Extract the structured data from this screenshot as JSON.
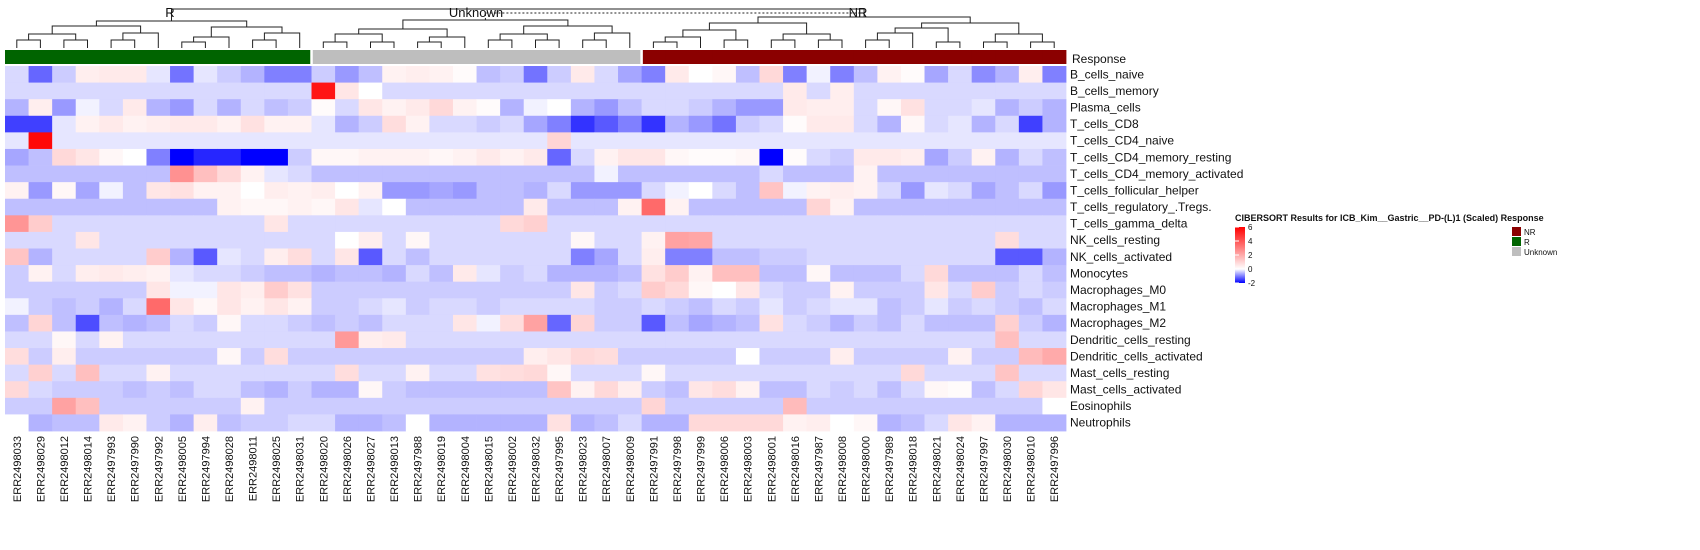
{
  "chart_data": {
    "type": "heatmap",
    "title": "",
    "legend_title": "CIBERSORT Results for ICB_Kim__Gastric__PD-(L)1 (Scaled) Response",
    "colorbar_ticks": [
      "6",
      "4",
      "2",
      "0",
      "-2"
    ],
    "color_scale": {
      "min": -2,
      "mid": 0,
      "max": 6,
      "low": "#0000ff",
      "mid_color": "#ffffff",
      "high": "#ff0000"
    },
    "annotation_label": "Response",
    "group_labels": [
      "R",
      "Unknown",
      "NR"
    ],
    "groups": [
      {
        "name": "NR",
        "color": "#8b0000"
      },
      {
        "name": "R",
        "color": "#006400"
      },
      {
        "name": "Unknown",
        "color": "#bebebe"
      }
    ],
    "samples": [
      "ERR2498033",
      "ERR2498029",
      "ERR2498012",
      "ERR2498014",
      "ERR2497993",
      "ERR2497990",
      "ERR2497992",
      "ERR2498005",
      "ERR2497994",
      "ERR2498028",
      "ERR2498011",
      "ERR2498025",
      "ERR2498031",
      "ERR2498020",
      "ERR2498026",
      "ERR2498027",
      "ERR2498013",
      "ERR2497988",
      "ERR2498019",
      "ERR2498004",
      "ERR2498015",
      "ERR2498002",
      "ERR2498032",
      "ERR2497995",
      "ERR2498023",
      "ERR2498007",
      "ERR2498009",
      "ERR2497991",
      "ERR2497998",
      "ERR2497999",
      "ERR2498006",
      "ERR2498003",
      "ERR2498001",
      "ERR2498016",
      "ERR2497987",
      "ERR2498008",
      "ERR2498000",
      "ERR2497989",
      "ERR2498018",
      "ERR2498021",
      "ERR2498024",
      "ERR2497997",
      "ERR2498030",
      "ERR2498010",
      "ERR2497996"
    ],
    "sample_groups": [
      "R",
      "R",
      "R",
      "R",
      "R",
      "R",
      "R",
      "R",
      "R",
      "R",
      "R",
      "R",
      "R",
      "Unknown",
      "Unknown",
      "Unknown",
      "Unknown",
      "Unknown",
      "Unknown",
      "Unknown",
      "Unknown",
      "Unknown",
      "Unknown",
      "Unknown",
      "Unknown",
      "Unknown",
      "Unknown",
      "NR",
      "NR",
      "NR",
      "NR",
      "NR",
      "NR",
      "NR",
      "NR",
      "NR",
      "NR",
      "NR",
      "NR",
      "NR",
      "NR",
      "NR",
      "NR",
      "NR",
      "NR"
    ],
    "rows": [
      "B_cells_naive",
      "B_cells_memory",
      "Plasma_cells",
      "T_cells_CD8",
      "T_cells_CD4_naive",
      "T_cells_CD4_memory_resting",
      "T_cells_CD4_memory_activated",
      "T_cells_follicular_helper",
      "T_cells_regulatory_.Tregs.",
      "T_cells_gamma_delta",
      "NK_cells_resting",
      "NK_cells_activated",
      "Monocytes",
      "Macrophages_M0",
      "Macrophages_M1",
      "Macrophages_M2",
      "Dendritic_cells_resting",
      "Dendritic_cells_activated",
      "Mast_cells_resting",
      "Mast_cells_activated",
      "Eosinophils",
      "Neutrophils"
    ],
    "values": [
      [
        -0.3,
        -1.2,
        -0.4,
        0.4,
        0.5,
        0.5,
        -0.2,
        -1.1,
        -0.2,
        -0.4,
        -0.6,
        -1.0,
        -1.0,
        -0.4,
        -0.8,
        -0.5,
        0.3,
        0.4,
        0.3,
        0.1,
        -0.5,
        -0.4,
        -1.1,
        -0.4,
        0.5,
        -0.3,
        -0.7,
        -1.0,
        0.5,
        0.0,
        0.2,
        -0.5,
        0.9,
        -1.0,
        -0.1,
        -1.0,
        -0.5,
        0.3,
        0.1,
        -0.7,
        -0.3,
        -0.9,
        -0.6,
        0.4,
        -1.0
      ],
      [
        -0.3,
        -0.3,
        -0.3,
        -0.3,
        -0.3,
        -0.3,
        -0.3,
        -0.3,
        -0.3,
        -0.3,
        -0.3,
        -0.3,
        -0.3,
        5.5,
        0.6,
        0.0,
        -0.3,
        -0.3,
        -0.3,
        -0.3,
        -0.3,
        -0.3,
        -0.3,
        -0.3,
        -0.3,
        -0.3,
        -0.3,
        -0.3,
        -0.3,
        -0.3,
        -0.3,
        -0.3,
        -0.3,
        0.5,
        -0.3,
        0.4,
        -0.3,
        -0.3,
        -0.3,
        -0.3,
        -0.3,
        -0.3,
        -0.3,
        -0.3,
        -0.3
      ],
      [
        -0.6,
        0.4,
        -0.8,
        -0.1,
        -0.3,
        0.5,
        -0.6,
        -0.8,
        -0.3,
        -0.6,
        -0.3,
        -0.5,
        -0.4,
        0.1,
        -0.3,
        0.6,
        0.3,
        0.5,
        0.9,
        0.3,
        0.1,
        -0.6,
        -0.1,
        0.0,
        -0.6,
        -0.8,
        -0.5,
        -0.3,
        -0.3,
        -0.4,
        -0.6,
        -0.8,
        -0.8,
        0.5,
        0.4,
        0.4,
        -0.3,
        0.2,
        0.7,
        -0.3,
        -0.3,
        -0.2,
        -0.6,
        -0.4,
        -0.6
      ],
      [
        -1.5,
        -1.5,
        -0.2,
        0.3,
        0.5,
        0.3,
        0.4,
        0.5,
        0.5,
        0.3,
        0.7,
        0.3,
        0.3,
        -0.2,
        -0.6,
        -0.4,
        0.8,
        0.3,
        -0.3,
        -0.3,
        -0.4,
        -0.3,
        -0.7,
        -1.0,
        -1.6,
        -1.3,
        -1.0,
        -1.6,
        -0.6,
        -0.8,
        -1.1,
        -0.4,
        -0.3,
        0.1,
        0.5,
        0.5,
        -0.3,
        -0.6,
        0.2,
        -0.3,
        -0.2,
        -0.6,
        -0.3,
        -1.5,
        -0.6
      ],
      [
        -0.2,
        5.8,
        -0.2,
        -0.2,
        -0.2,
        -0.2,
        -0.2,
        -0.2,
        -0.2,
        -0.2,
        -0.2,
        -0.2,
        -0.2,
        -0.2,
        -0.2,
        -0.2,
        -0.2,
        -0.2,
        -0.2,
        -0.2,
        -0.2,
        -0.2,
        -0.2,
        1.0,
        -0.2,
        -0.2,
        -0.2,
        -0.2,
        -0.2,
        -0.2,
        -0.2,
        -0.2,
        -0.2,
        -0.2,
        -0.2,
        -0.2,
        -0.2,
        -0.2,
        -0.2,
        -0.2,
        -0.2,
        -0.2,
        -0.2,
        -0.2,
        -0.2
      ],
      [
        -0.7,
        -0.5,
        0.9,
        0.6,
        0.2,
        0.0,
        -1.0,
        -2.0,
        -1.7,
        -1.7,
        -2.0,
        -2.0,
        -0.4,
        0.2,
        0.2,
        0.3,
        0.3,
        0.3,
        0.2,
        0.3,
        0.5,
        0.3,
        0.5,
        -1.2,
        -0.3,
        0.3,
        0.6,
        0.6,
        0.2,
        0.1,
        0.1,
        0.2,
        -2.0,
        0.1,
        -0.3,
        -0.4,
        0.5,
        0.5,
        0.4,
        -0.7,
        -0.4,
        0.3,
        -0.6,
        -0.3,
        -0.5
      ],
      [
        -0.5,
        -0.5,
        -0.5,
        -0.5,
        -0.5,
        -0.5,
        -0.5,
        2.6,
        1.5,
        0.9,
        0.3,
        -0.2,
        -0.3,
        -0.5,
        -0.5,
        -0.5,
        -0.5,
        -0.5,
        -0.5,
        -0.5,
        -0.5,
        -0.5,
        -0.5,
        -0.5,
        -0.5,
        -0.1,
        -0.5,
        -0.5,
        -0.5,
        -0.5,
        -0.5,
        -0.5,
        -0.3,
        -0.5,
        -0.5,
        -0.5,
        0.3,
        -0.5,
        -0.5,
        -0.5,
        -0.5,
        -0.5,
        -0.5,
        -0.5,
        -0.5
      ],
      [
        0.3,
        -0.8,
        0.2,
        -0.7,
        -0.1,
        -0.5,
        0.6,
        0.7,
        0.3,
        0.3,
        0.0,
        0.4,
        0.3,
        0.4,
        0.0,
        0.3,
        -0.8,
        -0.8,
        -0.7,
        -0.8,
        -0.5,
        -0.5,
        -0.6,
        -0.3,
        -0.8,
        -0.8,
        -0.8,
        -0.3,
        -0.1,
        0.0,
        -0.3,
        -0.5,
        1.4,
        -0.1,
        0.3,
        0.4,
        0.3,
        -0.3,
        -0.8,
        -0.2,
        -0.3,
        -0.7,
        -0.5,
        -0.3,
        -0.8
      ],
      [
        -0.5,
        -0.5,
        -0.5,
        -0.5,
        -0.5,
        -0.5,
        -0.5,
        -0.5,
        -0.5,
        0.3,
        0.2,
        0.2,
        0.3,
        0.2,
        0.6,
        -0.2,
        0.0,
        -0.5,
        -0.5,
        -0.5,
        -0.5,
        -0.5,
        0.5,
        -0.5,
        -0.5,
        -0.5,
        0.3,
        3.5,
        0.3,
        -0.5,
        -0.5,
        -0.5,
        -0.5,
        -0.5,
        1.0,
        0.3,
        -0.5,
        -0.5,
        -0.5,
        -0.5,
        -0.5,
        -0.5,
        -0.5,
        -0.5,
        -0.5
      ],
      [
        2.5,
        1.2,
        -0.3,
        -0.3,
        -0.3,
        -0.3,
        -0.3,
        -0.3,
        -0.3,
        -0.3,
        -0.3,
        0.6,
        -0.3,
        -0.3,
        -0.3,
        -0.3,
        -0.3,
        -0.3,
        -0.3,
        -0.3,
        -0.3,
        0.9,
        1.1,
        -0.3,
        -0.3,
        -0.3,
        -0.3,
        -0.3,
        -0.3,
        -0.3,
        -0.3,
        -0.3,
        -0.3,
        -0.3,
        -0.3,
        -0.3,
        -0.3,
        -0.3,
        -0.3,
        -0.3,
        -0.3,
        -0.3,
        -0.3,
        -0.3,
        -0.3
      ],
      [
        -0.3,
        -0.3,
        -0.3,
        0.6,
        -0.3,
        -0.3,
        -0.3,
        -0.3,
        -0.3,
        -0.3,
        -0.3,
        -0.3,
        -0.3,
        -0.3,
        0.0,
        0.4,
        -0.3,
        0.2,
        -0.3,
        -0.3,
        -0.3,
        -0.3,
        -0.3,
        -0.3,
        0.2,
        -0.3,
        -0.3,
        0.3,
        2.2,
        2.1,
        -0.3,
        -0.3,
        -0.3,
        -0.3,
        -0.3,
        -0.3,
        -0.3,
        -0.3,
        -0.3,
        -0.3,
        -0.3,
        -0.3,
        0.8,
        -0.3,
        -0.3
      ],
      [
        1.4,
        -0.6,
        -0.3,
        -0.3,
        -0.3,
        -0.3,
        1.2,
        -0.6,
        -1.3,
        -0.2,
        -0.3,
        0.4,
        0.8,
        -0.3,
        0.6,
        -1.3,
        -0.3,
        -0.5,
        -0.3,
        -0.3,
        -0.3,
        -0.3,
        -0.3,
        -0.3,
        -1.0,
        -0.7,
        -0.3,
        0.4,
        -1.0,
        -1.0,
        -0.5,
        -0.5,
        -0.4,
        -0.4,
        -0.3,
        -0.3,
        -0.3,
        -0.3,
        -0.3,
        -0.3,
        -0.3,
        -0.3,
        -1.3,
        -1.3,
        -0.6
      ],
      [
        -0.4,
        0.3,
        -0.3,
        0.4,
        0.5,
        0.4,
        0.3,
        -0.2,
        -0.3,
        -0.3,
        -0.4,
        -0.5,
        -0.5,
        -0.6,
        -0.5,
        -0.5,
        -0.6,
        -0.3,
        -0.5,
        0.5,
        -0.2,
        -0.4,
        -0.3,
        -0.6,
        -0.6,
        -0.6,
        -0.5,
        0.7,
        1.2,
        0.3,
        1.5,
        1.5,
        -0.5,
        -0.5,
        0.2,
        -0.5,
        -0.5,
        -0.5,
        -0.3,
        0.9,
        -0.5,
        -0.5,
        -0.5,
        -0.3,
        -0.5
      ],
      [
        -0.4,
        -0.4,
        -0.4,
        -0.4,
        -0.4,
        -0.4,
        0.6,
        -0.1,
        -0.1,
        0.6,
        0.4,
        1.2,
        0.7,
        -0.4,
        -0.4,
        -0.4,
        -0.4,
        -0.4,
        -0.4,
        -0.4,
        -0.4,
        -0.4,
        -0.4,
        -0.4,
        0.6,
        -0.4,
        -0.3,
        1.2,
        0.9,
        0.2,
        0.0,
        0.6,
        -0.3,
        -0.4,
        -0.4,
        0.3,
        -0.4,
        -0.4,
        -0.4,
        0.6,
        -0.3,
        1.2,
        -0.4,
        -0.3,
        -0.4
      ],
      [
        -0.1,
        -0.4,
        -0.5,
        -0.4,
        -0.6,
        -0.3,
        3.5,
        0.6,
        0.2,
        0.6,
        0.3,
        0.6,
        0.3,
        -0.4,
        -0.4,
        -0.3,
        -0.2,
        -0.4,
        -0.3,
        -0.3,
        -0.4,
        -0.3,
        -0.3,
        -0.3,
        -0.3,
        -0.4,
        -0.4,
        -0.3,
        -0.4,
        -0.5,
        -0.3,
        -0.4,
        -0.2,
        -0.4,
        -0.3,
        -0.2,
        -0.2,
        -0.5,
        -0.4,
        -0.2,
        -0.4,
        -0.3,
        -0.4,
        -0.5,
        -0.3
      ],
      [
        -0.5,
        1.0,
        -0.5,
        -1.4,
        -0.5,
        -0.6,
        -0.5,
        -0.3,
        -0.4,
        0.2,
        -0.3,
        -0.3,
        -0.4,
        -0.5,
        -0.4,
        -0.5,
        -0.3,
        -0.3,
        -0.3,
        0.6,
        -0.1,
        0.8,
        2.2,
        -1.2,
        1.0,
        -0.4,
        -0.4,
        -1.3,
        -0.5,
        -0.7,
        -0.6,
        -0.5,
        0.7,
        -0.3,
        -0.4,
        -0.6,
        -0.4,
        -0.5,
        -0.3,
        -0.5,
        -0.5,
        -0.5,
        1.1,
        -0.4,
        -0.6
      ],
      [
        -0.3,
        -0.3,
        0.2,
        -0.3,
        0.3,
        -0.3,
        -0.3,
        -0.3,
        -0.3,
        -0.3,
        -0.3,
        -0.3,
        -0.3,
        -0.3,
        2.4,
        0.4,
        0.5,
        -0.3,
        -0.3,
        -0.3,
        -0.3,
        -0.3,
        -0.3,
        -0.3,
        -0.3,
        -0.3,
        -0.3,
        -0.3,
        -0.3,
        -0.3,
        -0.3,
        -0.3,
        -0.3,
        -0.3,
        -0.3,
        -0.3,
        -0.3,
        -0.3,
        -0.3,
        -0.3,
        -0.3,
        -0.3,
        1.5,
        -0.3,
        -0.3
      ],
      [
        0.8,
        -0.4,
        0.4,
        -0.4,
        -0.4,
        -0.4,
        -0.4,
        -0.4,
        -0.4,
        0.2,
        -0.4,
        0.8,
        -0.4,
        -0.4,
        -0.4,
        -0.4,
        -0.4,
        -0.4,
        -0.4,
        -0.4,
        -0.4,
        -0.4,
        0.4,
        0.6,
        0.9,
        0.8,
        -0.4,
        -0.4,
        -0.4,
        -0.4,
        -0.4,
        0.0,
        -0.4,
        -0.4,
        -0.4,
        0.4,
        -0.4,
        -0.4,
        -0.4,
        -0.4,
        0.3,
        -0.4,
        -0.4,
        1.6,
        2.0
      ],
      [
        -0.3,
        1.1,
        -0.3,
        1.5,
        -0.3,
        -0.3,
        0.3,
        -0.3,
        -0.3,
        -0.3,
        -0.3,
        -0.3,
        -0.3,
        -0.3,
        0.8,
        -0.3,
        -0.3,
        0.3,
        -0.3,
        -0.3,
        0.7,
        0.8,
        0.9,
        0.2,
        -0.3,
        -0.3,
        -0.3,
        0.2,
        -0.3,
        -0.3,
        -0.3,
        -0.3,
        -0.3,
        -0.3,
        -0.3,
        -0.3,
        -0.3,
        -0.3,
        0.9,
        -0.3,
        -0.3,
        -0.3,
        1.4,
        -0.3,
        -0.3
      ],
      [
        0.9,
        -0.3,
        -0.4,
        -0.4,
        -0.4,
        -0.5,
        -0.4,
        -0.5,
        -0.3,
        -0.3,
        -0.5,
        -0.6,
        -0.4,
        -0.6,
        -0.6,
        0.2,
        -0.4,
        -0.5,
        -0.5,
        -0.5,
        -0.5,
        -0.5,
        -0.5,
        1.4,
        0.3,
        0.9,
        0.4,
        -0.4,
        -0.5,
        0.6,
        0.8,
        0.3,
        -0.5,
        -0.5,
        -0.3,
        -0.4,
        -0.3,
        -0.5,
        -0.3,
        0.2,
        0.1,
        -0.5,
        -0.3,
        1.0,
        0.6
      ],
      [
        -0.4,
        -0.4,
        2.2,
        1.5,
        -0.4,
        -0.4,
        -0.4,
        -0.4,
        -0.4,
        -0.4,
        0.3,
        -0.4,
        -0.4,
        -0.4,
        -0.4,
        -0.4,
        -0.4,
        -0.4,
        -0.4,
        -0.4,
        -0.4,
        -0.4,
        -0.4,
        -0.4,
        -0.4,
        -0.4,
        -0.4,
        1.0,
        -0.4,
        -0.4,
        -0.4,
        -0.4,
        -0.4,
        1.6,
        -0.4,
        -0.4,
        -0.4,
        -0.4,
        -0.4,
        -0.4,
        -0.4,
        -0.4,
        -0.4,
        -0.4,
        0.0
      ],
      [
        0.0,
        -0.6,
        -0.5,
        -0.5,
        0.5,
        0.3,
        -0.4,
        -0.6,
        0.4,
        -0.5,
        -0.4,
        -0.4,
        -0.3,
        -0.3,
        -0.6,
        -0.6,
        -0.5,
        0.0,
        -0.6,
        -0.6,
        -0.6,
        -0.6,
        -0.6,
        0.7,
        -0.6,
        -0.5,
        -0.3,
        -0.6,
        -0.6,
        0.9,
        0.9,
        0.9,
        0.9,
        0.3,
        0.4,
        0.0,
        0.2,
        -0.6,
        -0.5,
        -0.3,
        0.6,
        0.3,
        -0.6,
        -0.6,
        -0.6
      ]
    ]
  }
}
